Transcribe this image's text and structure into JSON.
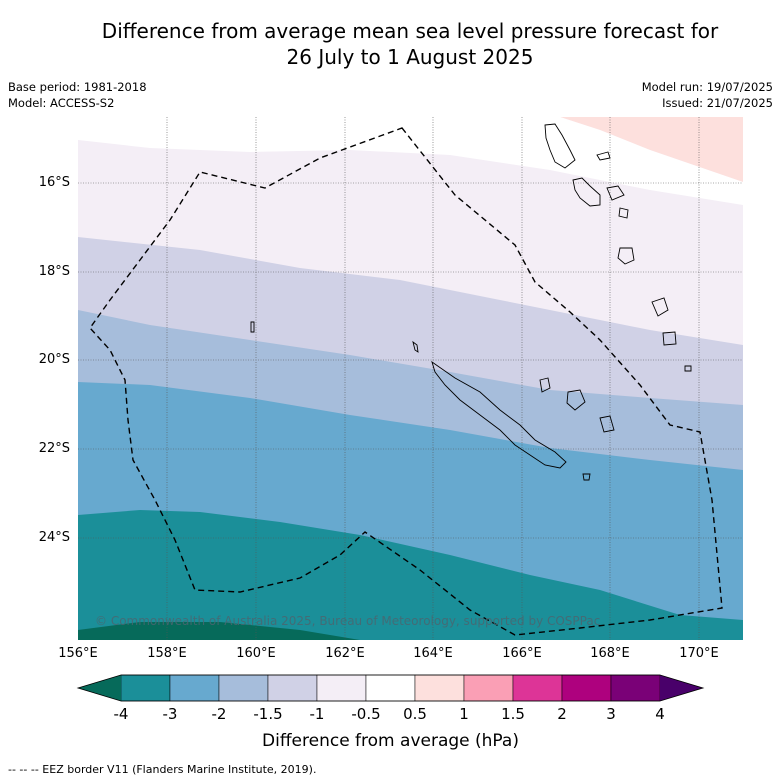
{
  "title_line1": "Difference from average mean sea level pressure forecast for",
  "title_line2": "26 July to 1 August 2025",
  "base_period": "Base period: 1981-2018",
  "model": "Model: ACCESS-S2",
  "model_run": "Model run: 19/07/2025",
  "issued": "Issued: 21/07/2025",
  "lat_ticks": [
    "16°S",
    "18°S",
    "20°S",
    "22°S",
    "24°S"
  ],
  "lon_ticks": [
    "156°E",
    "158°E",
    "160°E",
    "162°E",
    "164°E",
    "166°E",
    "168°E",
    "170°E"
  ],
  "copyright": "© Commonwealth of Australia 2025, Bureau of Meteorology, supported by COSPPac",
  "colorbar": {
    "ticks": [
      "-4",
      "-3",
      "-2",
      "-1.5",
      "-1",
      "-0.5",
      "0.5",
      "1",
      "1.5",
      "2",
      "3",
      "4"
    ],
    "colors": [
      "#1b8f99",
      "#67a9cf",
      "#a6bddb",
      "#d0d1e6",
      "#f4eef6",
      "#ffffff",
      "#fde0dd",
      "#fa9fb5",
      "#dd3497",
      "#ae017e",
      "#7a0177"
    ],
    "low_color": "#066a5a",
    "high_color": "#49006a",
    "label": "Difference from average (hPa)"
  },
  "legend_footer": "--  --  -- EEZ border V11 (Flanders Marine Institute, 2019)."
}
